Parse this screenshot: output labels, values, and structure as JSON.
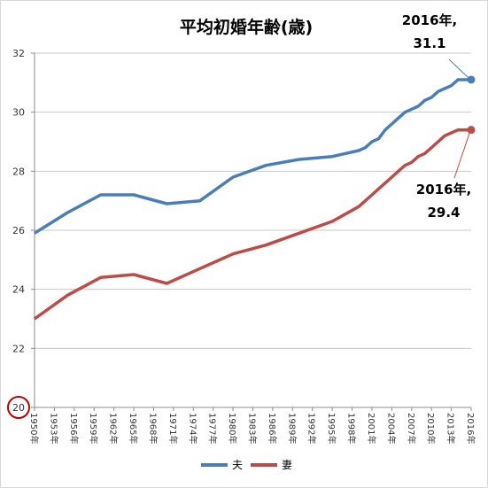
{
  "chart_data": {
    "type": "line",
    "title": "平均初婚年齢(歳)",
    "xlabel": "",
    "ylabel": "",
    "ylim": [
      20,
      32
    ],
    "yticks": [
      20,
      22,
      24,
      26,
      28,
      30,
      32
    ],
    "grid": "horizontal",
    "legend_position": "bottom",
    "x": [
      1950,
      1955,
      1960,
      1965,
      1970,
      1975,
      1980,
      1985,
      1990,
      1995,
      1999,
      2000,
      2001,
      2002,
      2003,
      2004,
      2005,
      2006,
      2007,
      2008,
      2009,
      2010,
      2011,
      2012,
      2013,
      2014,
      2015,
      2016
    ],
    "x_tick_labels": [
      "1950年",
      "1953年",
      "1956年",
      "1959年",
      "1962年",
      "1965年",
      "1968年",
      "1971年",
      "1974年",
      "1977年",
      "1980年",
      "1983年",
      "1986年",
      "1989年",
      "1992年",
      "1995年",
      "1998年",
      "2001年",
      "2004年",
      "2007年",
      "2010年",
      "2013年",
      "2016年"
    ],
    "series": [
      {
        "name": "夫",
        "color": "#4a7ebb",
        "values": [
          25.9,
          26.6,
          27.2,
          27.2,
          26.9,
          27.0,
          27.8,
          28.2,
          28.4,
          28.5,
          28.7,
          28.8,
          29.0,
          29.1,
          29.4,
          29.6,
          29.8,
          30.0,
          30.1,
          30.2,
          30.4,
          30.5,
          30.7,
          30.8,
          30.9,
          31.1,
          31.1,
          31.1
        ]
      },
      {
        "name": "妻",
        "color": "#be4b48",
        "values": [
          23.0,
          23.8,
          24.4,
          24.5,
          24.2,
          24.7,
          25.2,
          25.5,
          25.9,
          26.3,
          26.8,
          27.0,
          27.2,
          27.4,
          27.6,
          27.8,
          28.0,
          28.2,
          28.3,
          28.5,
          28.6,
          28.8,
          29.0,
          29.2,
          29.3,
          29.4,
          29.4,
          29.4
        ]
      }
    ],
    "annotations": [
      {
        "line1": "2016年,",
        "line2": "31.1",
        "series": 0
      },
      {
        "line1": "2016年,",
        "line2": "29.4",
        "series": 1
      }
    ],
    "highlight_circle": {
      "tick": "20",
      "color": "#c00000"
    }
  }
}
